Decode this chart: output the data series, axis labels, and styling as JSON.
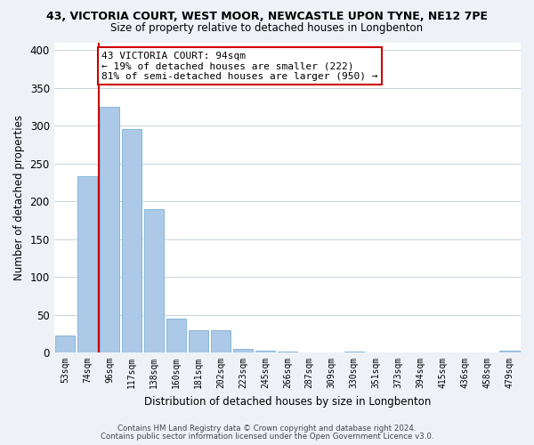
{
  "title1": "43, VICTORIA COURT, WEST MOOR, NEWCASTLE UPON TYNE, NE12 7PE",
  "title2": "Size of property relative to detached houses in Longbenton",
  "xlabel": "Distribution of detached houses by size in Longbenton",
  "ylabel": "Number of detached properties",
  "bar_labels": [
    "53sqm",
    "74sqm",
    "96sqm",
    "117sqm",
    "138sqm",
    "160sqm",
    "181sqm",
    "202sqm",
    "223sqm",
    "245sqm",
    "266sqm",
    "287sqm",
    "309sqm",
    "330sqm",
    "351sqm",
    "373sqm",
    "394sqm",
    "415sqm",
    "436sqm",
    "458sqm",
    "479sqm"
  ],
  "bar_values": [
    23,
    233,
    325,
    295,
    190,
    45,
    29,
    30,
    5,
    2,
    1,
    0,
    0,
    1,
    0,
    0,
    0,
    0,
    0,
    0,
    2
  ],
  "bar_color": "#adc9e8",
  "bar_edge_color": "#7aafd4",
  "highlight_line_color": "#cc0000",
  "annotation_text": "43 VICTORIA COURT: 94sqm\n← 19% of detached houses are smaller (222)\n81% of semi-detached houses are larger (950) →",
  "annotation_box_facecolor": "#ffffff",
  "annotation_box_edgecolor": "#cc0000",
  "ylim": [
    0,
    410
  ],
  "yticks": [
    0,
    50,
    100,
    150,
    200,
    250,
    300,
    350,
    400
  ],
  "footer1": "Contains HM Land Registry data © Crown copyright and database right 2024.",
  "footer2": "Contains public sector information licensed under the Open Government Licence v3.0.",
  "bg_color": "#eef2f7",
  "plot_bg_color": "#ffffff",
  "grid_color": "#c8d4e0"
}
